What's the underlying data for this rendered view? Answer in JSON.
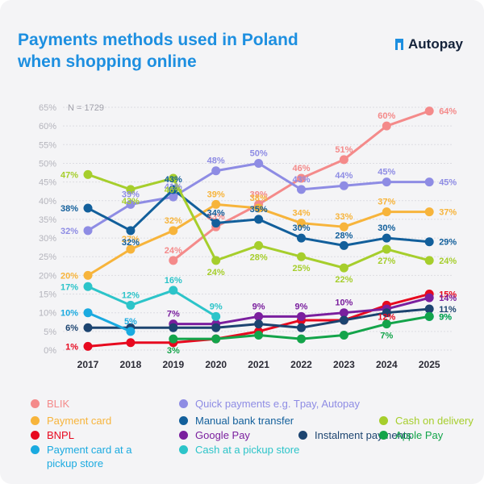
{
  "title": "Payments methods used in Poland\nwhen shopping online",
  "brand": "Autopay",
  "sample_note": "N = 1729",
  "chart_data": {
    "type": "line",
    "categories": [
      "2017",
      "2018",
      "2019",
      "2020",
      "2021",
      "2022",
      "2023",
      "2024",
      "2025"
    ],
    "ylim": [
      0,
      65
    ],
    "yticks": [
      "0%",
      "5%",
      "10%",
      "15%",
      "20%",
      "25%",
      "30%",
      "35%",
      "40%",
      "45%",
      "50%",
      "55%",
      "60%",
      "65%"
    ],
    "series": [
      {
        "name": "BLIK",
        "color": "#f48a8a",
        "values": [
          null,
          null,
          24,
          33,
          39,
          46,
          51,
          60,
          64
        ],
        "labels": [
          "",
          "",
          "24%",
          "33%",
          "39%",
          "46%",
          "51%",
          "60%",
          "64%"
        ]
      },
      {
        "name": "Quick payments e.g. Tpay, Autopay",
        "color": "#8e8ce4",
        "values": [
          32,
          39,
          41,
          48,
          50,
          43,
          44,
          45,
          45
        ],
        "labels": [
          "32%",
          "39%",
          "41%",
          "48%",
          "50%",
          "43%",
          "44%",
          "45%",
          "45%"
        ]
      },
      {
        "name": "Payment card",
        "color": "#f7b43b",
        "values": [
          20,
          27,
          32,
          39,
          38,
          34,
          33,
          37,
          37
        ],
        "labels": [
          "20%",
          "27%",
          "32%",
          "39%",
          "38%",
          "34%",
          "33%",
          "37%",
          "37%"
        ]
      },
      {
        "name": "Manual bank transfer",
        "color": "#125f9b",
        "values": [
          38,
          32,
          43,
          34,
          35,
          30,
          28,
          30,
          29
        ],
        "labels": [
          "38%",
          "32%",
          "43%",
          "34%",
          "35%",
          "30%",
          "28%",
          "30%",
          "29%"
        ]
      },
      {
        "name": "Cash on delivery",
        "color": "#a6ce2c",
        "values": [
          47,
          43,
          46,
          24,
          28,
          25,
          22,
          27,
          24
        ],
        "labels": [
          "47%",
          "43%",
          "46%",
          "24%",
          "28%",
          "25%",
          "22%",
          "27%",
          "24%"
        ]
      },
      {
        "name": "BNPL",
        "color": "#e7091f",
        "values": [
          1,
          2,
          2,
          3,
          5,
          8,
          8,
          12,
          15
        ],
        "labels": [
          "1%",
          "",
          "",
          "",
          "",
          "",
          "",
          "12%",
          "15%"
        ]
      },
      {
        "name": "Google Pay",
        "color": "#7a1f9e",
        "values": [
          null,
          null,
          7,
          7,
          9,
          9,
          10,
          11,
          14
        ],
        "labels": [
          "",
          "",
          "7%",
          "",
          "9%",
          "9%",
          "10%",
          "",
          "14%"
        ]
      },
      {
        "name": "Instalment payments",
        "color": "#1c4470",
        "values": [
          6,
          6,
          6,
          6,
          7,
          6,
          8,
          10,
          11
        ],
        "labels": [
          "6%",
          "",
          "",
          "",
          "",
          "",
          "",
          "",
          "11%"
        ]
      },
      {
        "name": "Payment card at a pickup store",
        "color": "#1aaae0",
        "values": [
          10,
          5,
          null,
          null,
          null,
          null,
          null,
          null,
          9
        ],
        "labels": [
          "10%",
          "5%",
          "",
          "",
          "",
          "",
          "",
          "",
          "9%"
        ]
      },
      {
        "name": "Cash at a pickup store",
        "color": "#2cc4c9",
        "values": [
          17,
          12,
          16,
          9,
          null,
          null,
          null,
          null,
          9
        ],
        "labels": [
          "17%",
          "12%",
          "16%",
          "9%",
          "",
          "",
          "",
          "",
          "9%"
        ]
      },
      {
        "name": "Apple Pay",
        "color": "#13a44a",
        "values": [
          null,
          null,
          3,
          3,
          4,
          3,
          4,
          7,
          9
        ],
        "labels": [
          "",
          "",
          "3%",
          "",
          "",
          "",
          "",
          "7%",
          "9%"
        ]
      }
    ]
  },
  "legend": [
    {
      "label": "BLIK",
      "color": "#f48a8a"
    },
    {
      "label": "Quick payments e.g. Tpay, Autopay",
      "color": "#8e8ce4"
    },
    {
      "label": "Payment card",
      "color": "#f7b43b"
    },
    {
      "label": "Manual bank transfer",
      "color": "#125f9b"
    },
    {
      "label": "Cash on delivery",
      "color": "#a6ce2c"
    },
    {
      "label": "BNPL",
      "color": "#e7091f"
    },
    {
      "label": "Google Pay",
      "color": "#7a1f9e"
    },
    {
      "label": "Instalment payments",
      "color": "#1c4470"
    },
    {
      "label": "Apple Pay",
      "color": "#13a44a"
    },
    {
      "label": "Payment card at a\npickup store",
      "color": "#1aaae0"
    },
    {
      "label": "Cash at a pickup store",
      "color": "#2cc4c9"
    }
  ]
}
